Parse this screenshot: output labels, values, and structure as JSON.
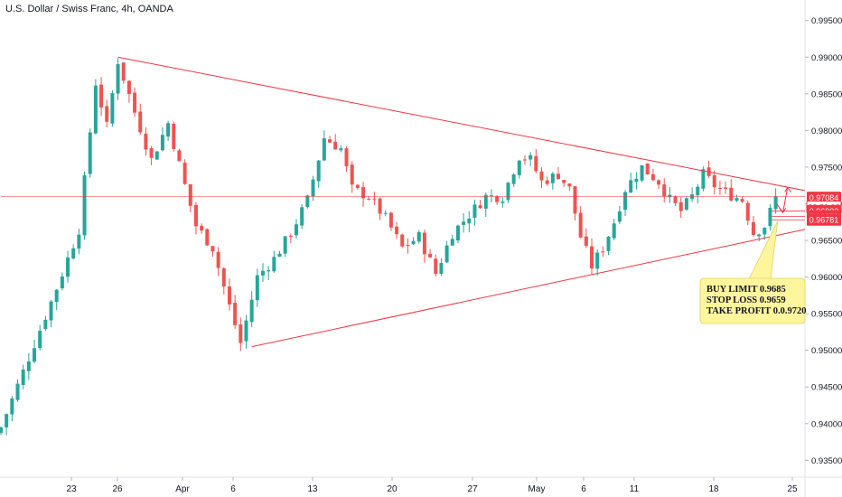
{
  "header": {
    "title": "U.S. Dollar / Swiss Franc, 4h, OANDA"
  },
  "chart_data": {
    "type": "candlestick",
    "symbol": "U.S. Dollar / Swiss Franc",
    "timeframe": "4h",
    "source": "OANDA",
    "ylim": [
      0.9327,
      0.9978
    ],
    "y_ticks": [
      "0.99500",
      "0.99000",
      "0.98500",
      "0.98000",
      "0.97500",
      "0.97000",
      "0.96500",
      "0.96000",
      "0.95500",
      "0.95000",
      "0.94500",
      "0.94000",
      "0.93500"
    ],
    "x_ticks": [
      "23",
      "26",
      "Apr",
      "6",
      "13",
      "20",
      "27",
      "May",
      "6",
      "11",
      "18",
      "25"
    ],
    "candle_count": 140,
    "price_key_points": [
      [
        0,
        0.9395
      ],
      [
        10,
        0.9585
      ],
      [
        14,
        0.9665
      ],
      [
        17,
        0.9865
      ],
      [
        19,
        0.9805
      ],
      [
        21,
        0.9895
      ],
      [
        24,
        0.9825
      ],
      [
        27,
        0.976
      ],
      [
        30,
        0.981
      ],
      [
        33,
        0.9725
      ],
      [
        35,
        0.967
      ],
      [
        38,
        0.964
      ],
      [
        41,
        0.956
      ],
      [
        43,
        0.951
      ],
      [
        46,
        0.96
      ],
      [
        49,
        0.9625
      ],
      [
        52,
        0.966
      ],
      [
        55,
        0.9705
      ],
      [
        58,
        0.979
      ],
      [
        61,
        0.9775
      ],
      [
        63,
        0.972
      ],
      [
        66,
        0.971
      ],
      [
        69,
        0.968
      ],
      [
        72,
        0.964
      ],
      [
        75,
        0.9655
      ],
      [
        78,
        0.9605
      ],
      [
        81,
        0.966
      ],
      [
        84,
        0.9685
      ],
      [
        87,
        0.971
      ],
      [
        90,
        0.971
      ],
      [
        93,
        0.9765
      ],
      [
        95,
        0.976
      ],
      [
        97,
        0.973
      ],
      [
        100,
        0.974
      ],
      [
        102,
        0.972
      ],
      [
        104,
        0.9655
      ],
      [
        106,
        0.9615
      ],
      [
        108,
        0.964
      ],
      [
        110,
        0.9675
      ],
      [
        112,
        0.972
      ],
      [
        115,
        0.975
      ],
      [
        118,
        0.973
      ],
      [
        120,
        0.9705
      ],
      [
        122,
        0.969
      ],
      [
        124,
        0.971
      ],
      [
        126,
        0.974
      ],
      [
        128,
        0.9725
      ],
      [
        130,
        0.9715
      ],
      [
        133,
        0.9705
      ],
      [
        135,
        0.966
      ],
      [
        137,
        0.967
      ],
      [
        139,
        0.9708
      ]
    ],
    "trendlines": [
      {
        "name": "upper",
        "from": [
          21,
          0.99
        ],
        "to": [
          152,
          0.9718
        ]
      },
      {
        "name": "lower",
        "from": [
          45,
          0.9505
        ],
        "to": [
          152,
          0.9665
        ]
      },
      {
        "name": "horizontal",
        "from": [
          0,
          0.971
        ],
        "to": [
          152,
          0.971
        ]
      }
    ],
    "price_labels": [
      {
        "text": "0.97084",
        "value": 0.97084
      },
      {
        "text": "03:21:03",
        "value": 0.96955
      },
      {
        "text": "0.96902",
        "value": 0.96902
      },
      {
        "text": "0.96829",
        "value": 0.96829
      },
      {
        "text": "0.96781",
        "value": 0.96781
      }
    ],
    "colors": {
      "up": "#26a69a",
      "down": "#ef5350",
      "trendline": "#f23645",
      "label_bg": "#f23645",
      "note_bg": "#fff59d"
    },
    "annotation": {
      "lines": [
        "BUY LIMIT 0.9685",
        "STOP LOSS 0.9659",
        "TAKE PROFIT 0.0.9720"
      ]
    }
  }
}
